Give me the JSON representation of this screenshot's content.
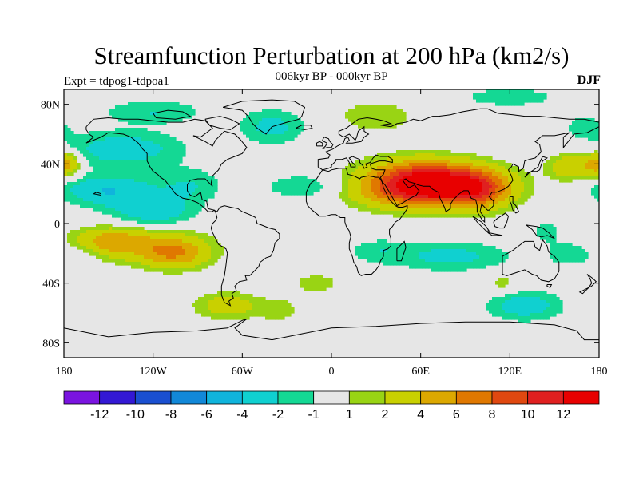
{
  "header": {
    "title": "Streamfunction Perturbation at 200 hPa (km2/s)",
    "subtitle": "006kyr BP - 000kyr BP",
    "left_label": "Expt = tdpog1-tdpoa1",
    "right_label": "DJF"
  },
  "colors": {
    "background_neutral": "#e6e6e6",
    "coastline": "#000000"
  },
  "map": {
    "projection": "cylindrical-equidistant",
    "lon_range": [
      -180,
      180
    ],
    "lat_range": [
      -90,
      90
    ],
    "x_ticks": [
      {
        "value": -180,
        "label": "180"
      },
      {
        "value": -120,
        "label": "120W"
      },
      {
        "value": -60,
        "label": "60W"
      },
      {
        "value": 0,
        "label": "0"
      },
      {
        "value": 60,
        "label": "60E"
      },
      {
        "value": 120,
        "label": "120E"
      },
      {
        "value": 180,
        "label": "180"
      }
    ],
    "y_ticks": [
      {
        "value": 80,
        "label": "80N"
      },
      {
        "value": 40,
        "label": "40N"
      },
      {
        "value": 0,
        "label": "0"
      },
      {
        "value": -40,
        "label": "40S"
      },
      {
        "value": -80,
        "label": "80S"
      }
    ],
    "anomalies": [
      {
        "lon": 75,
        "lat": 25,
        "amp": 13,
        "rx": 38,
        "ry": 13
      },
      {
        "lon": 55,
        "lat": 32,
        "amp": 5,
        "rx": 35,
        "ry": 12
      },
      {
        "lon": 40,
        "lat": 20,
        "amp": 3,
        "rx": 30,
        "ry": 10
      },
      {
        "lon": 100,
        "lat": 22,
        "amp": 4,
        "rx": 18,
        "ry": 12
      },
      {
        "lon": 160,
        "lat": 38,
        "amp": 4,
        "rx": 14,
        "ry": 8
      },
      {
        "lon": -180,
        "lat": 40,
        "amp": 3,
        "rx": 10,
        "ry": 8
      },
      {
        "lon": 180,
        "lat": 40,
        "amp": 2.5,
        "rx": 10,
        "ry": 8
      },
      {
        "lon": -150,
        "lat": -12,
        "amp": 4,
        "rx": 25,
        "ry": 9
      },
      {
        "lon": -105,
        "lat": -20,
        "amp": 5,
        "rx": 22,
        "ry": 10
      },
      {
        "lon": -125,
        "lat": -15,
        "amp": 2.5,
        "rx": 40,
        "ry": 12
      },
      {
        "lon": -70,
        "lat": -55,
        "amp": 3,
        "rx": 22,
        "ry": 9
      },
      {
        "lon": -35,
        "lat": -58,
        "amp": 1.5,
        "rx": 15,
        "ry": 8
      },
      {
        "lon": -150,
        "lat": 22,
        "amp": -4,
        "rx": 30,
        "ry": 10
      },
      {
        "lon": -120,
        "lat": 8,
        "amp": -3.5,
        "rx": 25,
        "ry": 9
      },
      {
        "lon": -95,
        "lat": 25,
        "amp": -2,
        "rx": 22,
        "ry": 12
      },
      {
        "lon": -140,
        "lat": 50,
        "amp": -3,
        "rx": 40,
        "ry": 12
      },
      {
        "lon": -120,
        "lat": 75,
        "amp": -2,
        "rx": 35,
        "ry": 8
      },
      {
        "lon": -40,
        "lat": 65,
        "amp": -2.5,
        "rx": 22,
        "ry": 12
      },
      {
        "lon": -20,
        "lat": 25,
        "amp": -2,
        "rx": 25,
        "ry": 8
      },
      {
        "lon": 30,
        "lat": 72,
        "amp": 2,
        "rx": 25,
        "ry": 10
      },
      {
        "lon": 120,
        "lat": 85,
        "amp": -1.5,
        "rx": 40,
        "ry": 8
      },
      {
        "lon": 80,
        "lat": -22,
        "amp": -2.5,
        "rx": 40,
        "ry": 10
      },
      {
        "lon": 30,
        "lat": -18,
        "amp": -1.5,
        "rx": 20,
        "ry": 8
      },
      {
        "lon": 130,
        "lat": -55,
        "amp": -3,
        "rx": 25,
        "ry": 10
      },
      {
        "lon": 160,
        "lat": -20,
        "amp": -2,
        "rx": 15,
        "ry": 8
      },
      {
        "lon": -170,
        "lat": -20,
        "amp": -1.5,
        "rx": 15,
        "ry": 9
      },
      {
        "lon": -10,
        "lat": -40,
        "amp": 1.5,
        "rx": 18,
        "ry": 8
      },
      {
        "lon": 115,
        "lat": -40,
        "amp": 1.5,
        "rx": 12,
        "ry": 7
      },
      {
        "lon": 145,
        "lat": -5,
        "amp": -1.5,
        "rx": 10,
        "ry": 8
      },
      {
        "lon": 170,
        "lat": 65,
        "amp": -1.5,
        "rx": 15,
        "ry": 8
      }
    ]
  },
  "colorbar": {
    "levels": [
      {
        "label": "-12",
        "color": "#7a14e0"
      },
      {
        "label": "-10",
        "color": "#3318d4"
      },
      {
        "label": "-8",
        "color": "#1a4fd0"
      },
      {
        "label": "-6",
        "color": "#1288d8"
      },
      {
        "label": "-4",
        "color": "#10b4dc"
      },
      {
        "label": "-2",
        "color": "#10d0d0"
      },
      {
        "label": "-1",
        "color": "#14d894"
      },
      {
        "label": "1",
        "color": "#e6e6e6"
      },
      {
        "label": "2",
        "color": "#99d414"
      },
      {
        "label": "4",
        "color": "#c9d000"
      },
      {
        "label": "6",
        "color": "#dca800"
      },
      {
        "label": "8",
        "color": "#e07800"
      },
      {
        "label": "10",
        "color": "#e04810"
      },
      {
        "label": "12",
        "color": "#e02020"
      },
      {
        "label": "",
        "color": "#e80000"
      }
    ]
  }
}
